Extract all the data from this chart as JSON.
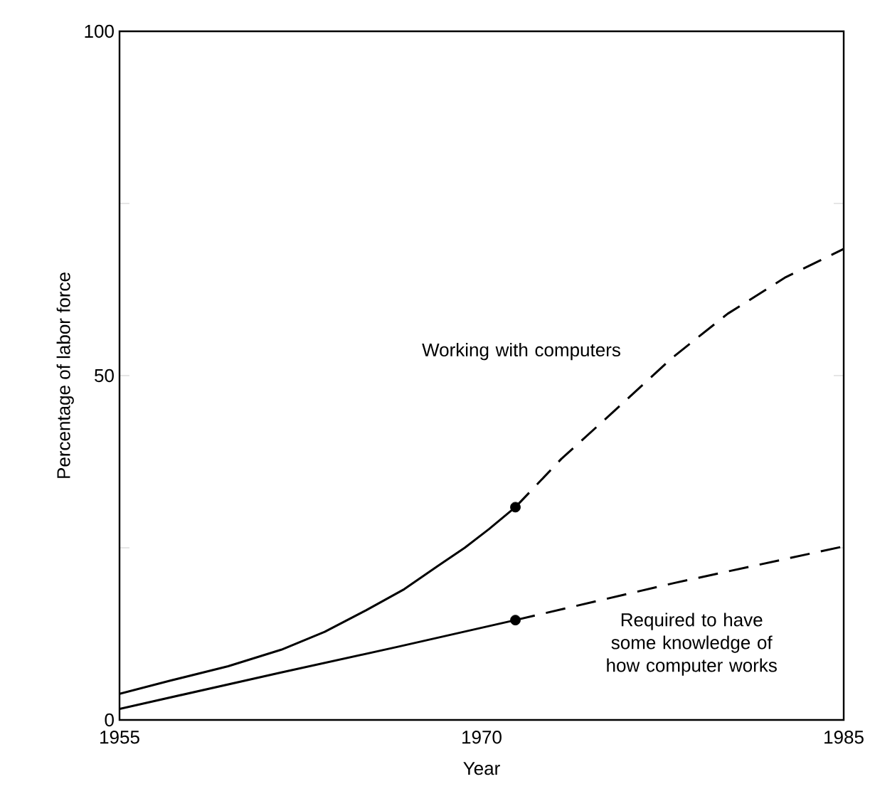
{
  "chart_data": {
    "type": "line",
    "xlabel": "Year",
    "ylabel": "Percentage of labor force",
    "xlim": [
      1955,
      1985
    ],
    "ylim": [
      0,
      100
    ],
    "xticks": [
      1955,
      1970,
      1985
    ],
    "yticks": [
      0,
      {
        "value": 25,
        "label": null
      },
      50,
      {
        "value": 75,
        "label": null
      },
      100
    ],
    "grid": false,
    "series": [
      {
        "color": "#000000",
        "line_style": "solid",
        "x": [
          1955,
          1957.1,
          1959.5,
          1961.7,
          1963.5,
          1965.2,
          1966.8,
          1968.2,
          1969.3,
          1970.3,
          1971.4
        ],
        "values": [
          3.8,
          5.7,
          7.8,
          10.2,
          12.8,
          15.9,
          19.0,
          22.4,
          25.0,
          27.7,
          30.9
        ]
      },
      {
        "name": "Working with computers",
        "color": "#000000",
        "line_style": "dashed",
        "x": [
          1971.4,
          1973.3,
          1975.6,
          1977.9,
          1980.2,
          1982.6,
          1985
        ],
        "values": [
          30.9,
          37.9,
          45.2,
          52.6,
          59.0,
          64.3,
          68.4
        ]
      },
      {
        "color": "#000000",
        "line_style": "solid",
        "x": [
          1955,
          1961.7,
          1966.5,
          1971.4
        ],
        "values": [
          1.6,
          6.9,
          10.6,
          14.5
        ]
      },
      {
        "name": "Required to have some knowledge of how computer works",
        "color": "#000000",
        "line_style": "dashed",
        "x": [
          1971.4,
          1978,
          1985
        ],
        "values": [
          14.5,
          19.9,
          25.2
        ]
      },
      {
        "type": "scatter",
        "color": "#000000",
        "x": [
          1971.4,
          1971.4
        ],
        "values": [
          30.9,
          14.5
        ]
      }
    ]
  }
}
